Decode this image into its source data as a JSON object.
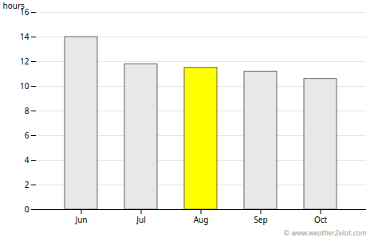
{
  "chart_data": {
    "type": "bar",
    "categories": [
      "Jun",
      "Jul",
      "Aug",
      "Sep",
      "Oct"
    ],
    "values": [
      14.0,
      11.8,
      11.5,
      11.2,
      10.6
    ],
    "colors": [
      "#e8e8e8",
      "#e8e8e8",
      "#ffff00",
      "#e8e8e8",
      "#e8e8e8"
    ],
    "ylabel": "hours",
    "ylim": [
      0,
      16
    ],
    "yticks": [
      0,
      2,
      4,
      6,
      8,
      10,
      12,
      14,
      16
    ],
    "grid": true,
    "annotations": [
      "© www.weather2visit.com"
    ]
  }
}
